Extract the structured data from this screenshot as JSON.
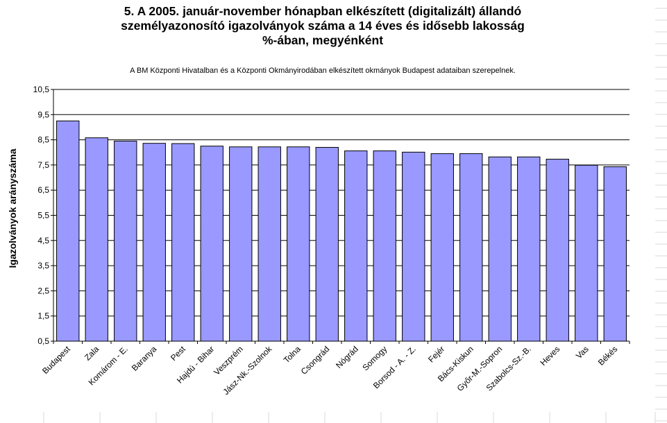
{
  "chart_data": {
    "type": "bar",
    "title_lines": [
      "5. A 2005. január-november hónapban elkészített (digitalizált) állandó",
      "személyazonosító igazolványok száma a 14 éves és idősebb lakosság",
      "%-ában,  megyénként"
    ],
    "subtitle": "A BM Központi Hivatalban és a Központi Okmányirodában elkészített  okmányok Budapest adataiban szerepelnek.",
    "xlabel": "",
    "ylabel": "Igazolványok arányszáma",
    "ylim": [
      0.5,
      10.5
    ],
    "yticks": [
      "10,5",
      "9,5",
      "8,5",
      "7,5",
      "6,5",
      "5,5",
      "4,5",
      "3,5",
      "2,5",
      "1,5",
      "0,5"
    ],
    "categories": [
      "Budapest",
      "Zala",
      "Komárom - E.",
      "Baranya",
      "Pest",
      "Hajdú - Bihar",
      "Veszprém",
      "Jász-Nk.-Szolnok",
      "Tolna",
      "Csongrád",
      "Nógrád",
      "Somogy",
      "Borsod - A. - Z.",
      "Fejér",
      "Bács-Kiskun",
      "Győr-M.-Sopron",
      "Szabolcs-Sz.-B.",
      "Heves",
      "Vas",
      "Békés"
    ],
    "values": [
      9.25,
      8.58,
      8.45,
      8.36,
      8.35,
      8.25,
      8.22,
      8.22,
      8.22,
      8.2,
      8.06,
      8.06,
      8.01,
      7.95,
      7.95,
      7.82,
      7.82,
      7.73,
      7.49,
      7.43
    ],
    "grid": true,
    "legend": "none",
    "colors": {
      "bar_fill": "#9999ff",
      "bar_stroke": "#000000",
      "gridline": "#000000",
      "background": "#ffffff",
      "sheet_grid": "#d9d9d9"
    }
  }
}
